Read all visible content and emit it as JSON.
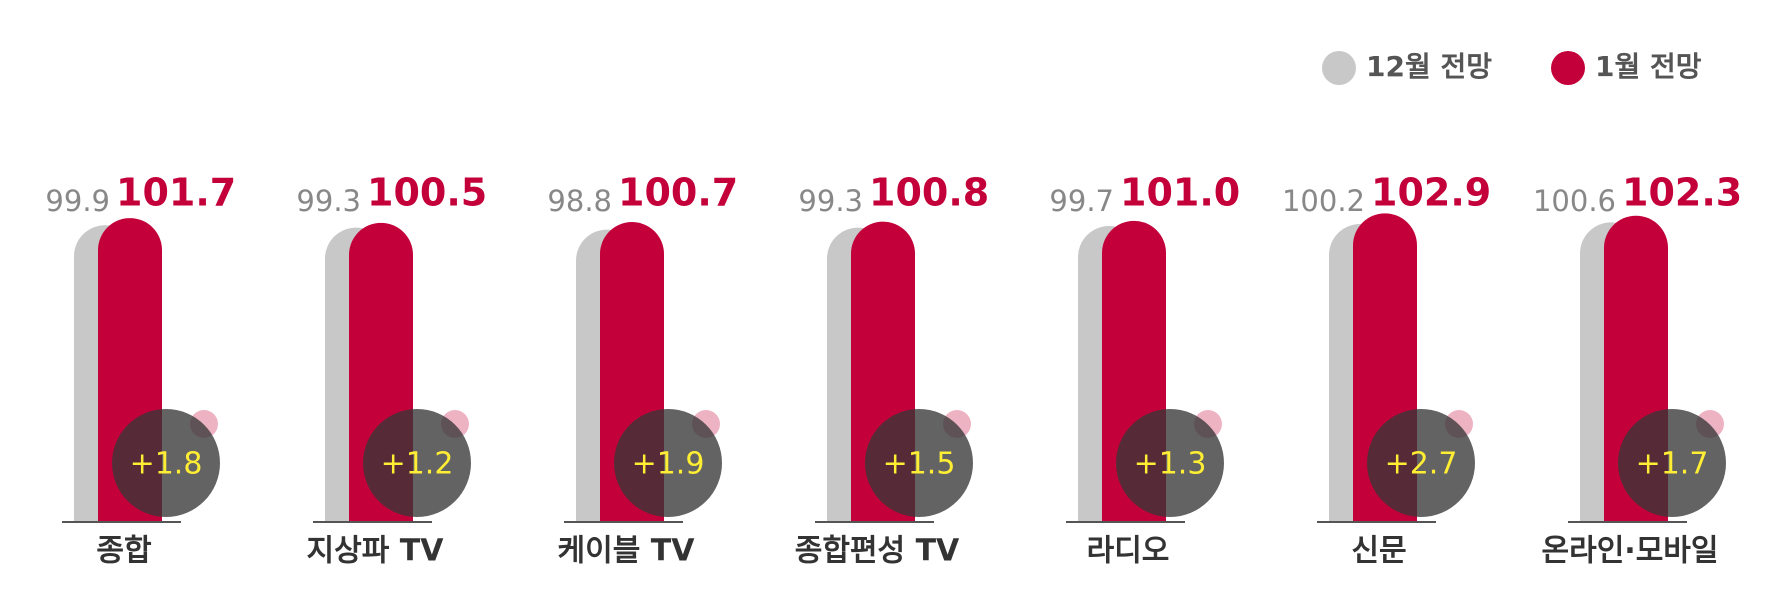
{
  "chart_data": {
    "type": "bar",
    "categories": [
      "종합",
      "지상파 TV",
      "케이블 TV",
      "종합편성 TV",
      "라디오",
      "신문",
      "온라인·모바일"
    ],
    "series": [
      {
        "name": "12월 전망",
        "color": "#c8c8c8",
        "values": [
          99.9,
          99.3,
          98.8,
          99.3,
          99.7,
          100.2,
          100.6
        ]
      },
      {
        "name": "1월 전망",
        "color": "#c4003a",
        "values": [
          101.7,
          100.5,
          100.7,
          100.8,
          101.0,
          102.9,
          102.3
        ],
        "value_labels": [
          "101.7",
          "100.5",
          "100.7",
          "100.8",
          "101.0",
          "102.9",
          "102.3"
        ]
      }
    ],
    "annotations": [
      "+1.8",
      "+1.2",
      "+1.9",
      "+1.5",
      "+1.3",
      "+2.7",
      "+1.7"
    ],
    "ylim": [
      25,
      105
    ],
    "legend": "top-right"
  }
}
